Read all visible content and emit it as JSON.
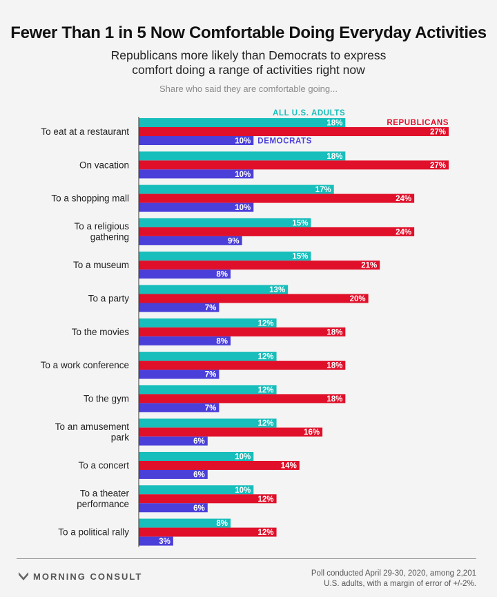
{
  "header": {
    "title": "Fewer Than 1 in 5 Now Comfortable Doing Everyday Activities",
    "subtitle_line1": "Republicans more likely than Democrats to express",
    "subtitle_line2": "comfort doing a range of activities right now",
    "note": "Share who said they are comfortable going..."
  },
  "colors": {
    "all": "#17bebb",
    "rep": "#e0102a",
    "dem": "#4b3fd9"
  },
  "chart_data": {
    "type": "bar",
    "orientation": "horizontal",
    "categories": [
      [
        "To eat at a restaurant"
      ],
      [
        "On vacation"
      ],
      [
        "To a shopping mall"
      ],
      [
        "To a religious",
        "gathering"
      ],
      [
        "To a museum"
      ],
      [
        "To a party"
      ],
      [
        "To the movies"
      ],
      [
        "To a work conference"
      ],
      [
        "To the gym"
      ],
      [
        "To an amusement",
        "park"
      ],
      [
        "To a concert"
      ],
      [
        "To a theater",
        "performance"
      ],
      [
        "To a political rally"
      ]
    ],
    "series": [
      {
        "name": "ALL U.S. ADULTS",
        "values": [
          18,
          18,
          17,
          15,
          15,
          13,
          12,
          12,
          12,
          12,
          10,
          10,
          8
        ]
      },
      {
        "name": "REPUBLICANS",
        "values": [
          27,
          27,
          24,
          24,
          21,
          20,
          18,
          18,
          18,
          16,
          14,
          12,
          12
        ]
      },
      {
        "name": "DEMOCRATS",
        "values": [
          10,
          10,
          10,
          9,
          8,
          7,
          8,
          7,
          7,
          6,
          6,
          6,
          3
        ]
      }
    ],
    "value_suffix": "%",
    "legend": "inline labels on first category",
    "grid": false
  },
  "footer": {
    "brand": "MORNING CONSULT",
    "source_line1": "Poll conducted April 29-30, 2020, among 2,201",
    "source_line2": "U.S. adults, with a margin of error of +/-2%."
  }
}
